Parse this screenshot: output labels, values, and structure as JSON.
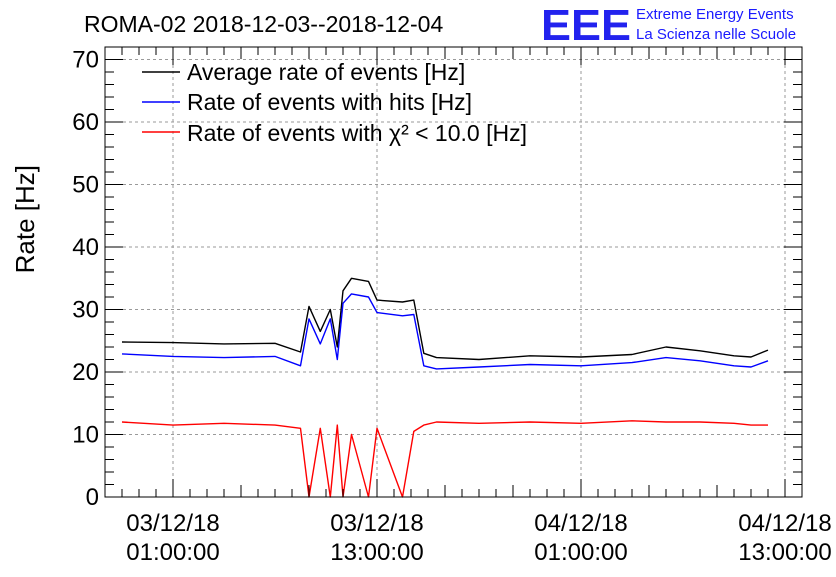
{
  "chart_data": {
    "type": "line",
    "title": "ROMA-02 2018-12-03--2018-12-04",
    "ylabel": "Rate [Hz]",
    "xlabel": "",
    "ylim": [
      0,
      72
    ],
    "yticks": [
      0,
      10,
      20,
      30,
      40,
      50,
      60,
      70
    ],
    "xlim": [
      "2018-12-02 21:00:00",
      "2018-12-04 14:00:00"
    ],
    "xticks": [
      {
        "date": "03/12/18",
        "time": "01:00:00",
        "t": "2018-12-03 01:00:00"
      },
      {
        "date": "03/12/18",
        "time": "13:00:00",
        "t": "2018-12-03 13:00:00"
      },
      {
        "date": "04/12/18",
        "time": "01:00:00",
        "t": "2018-12-04 01:00:00"
      },
      {
        "date": "04/12/18",
        "time": "13:00:00",
        "t": "2018-12-04 13:00:00"
      }
    ],
    "grid": true,
    "legend_position": "top-left",
    "series": [
      {
        "name": "Average rate of events [Hz]",
        "color": "#000000",
        "points": [
          [
            "2018-12-02 22:00",
            24.8
          ],
          [
            "2018-12-03 01:00",
            24.7
          ],
          [
            "2018-12-03 04:00",
            24.5
          ],
          [
            "2018-12-03 07:00",
            24.6
          ],
          [
            "2018-12-03 08:30",
            23.2
          ],
          [
            "2018-12-03 09:00",
            30.5
          ],
          [
            "2018-12-03 09:40",
            26.5
          ],
          [
            "2018-12-03 10:15",
            30.0
          ],
          [
            "2018-12-03 10:40",
            24.0
          ],
          [
            "2018-12-03 11:00",
            33.0
          ],
          [
            "2018-12-03 11:30",
            35.0
          ],
          [
            "2018-12-03 12:30",
            34.5
          ],
          [
            "2018-12-03 13:00",
            31.5
          ],
          [
            "2018-12-03 14:30",
            31.2
          ],
          [
            "2018-12-03 15:10",
            31.5
          ],
          [
            "2018-12-03 15:45",
            23.0
          ],
          [
            "2018-12-03 16:30",
            22.3
          ],
          [
            "2018-12-03 19:00",
            22.0
          ],
          [
            "2018-12-03 22:00",
            22.6
          ],
          [
            "2018-12-04 01:00",
            22.4
          ],
          [
            "2018-12-04 04:00",
            22.8
          ],
          [
            "2018-12-04 06:00",
            24.0
          ],
          [
            "2018-12-04 08:00",
            23.4
          ],
          [
            "2018-12-04 10:00",
            22.6
          ],
          [
            "2018-12-04 11:00",
            22.4
          ],
          [
            "2018-12-04 12:00",
            23.5
          ]
        ]
      },
      {
        "name": "Rate of events with hits [Hz]",
        "color": "#0000ff",
        "points": [
          [
            "2018-12-02 22:00",
            22.9
          ],
          [
            "2018-12-03 01:00",
            22.5
          ],
          [
            "2018-12-03 04:00",
            22.3
          ],
          [
            "2018-12-03 07:00",
            22.5
          ],
          [
            "2018-12-03 08:30",
            21.0
          ],
          [
            "2018-12-03 09:00",
            28.5
          ],
          [
            "2018-12-03 09:40",
            24.5
          ],
          [
            "2018-12-03 10:15",
            28.5
          ],
          [
            "2018-12-03 10:40",
            22.0
          ],
          [
            "2018-12-03 11:00",
            31.0
          ],
          [
            "2018-12-03 11:30",
            32.5
          ],
          [
            "2018-12-03 12:30",
            32.0
          ],
          [
            "2018-12-03 13:00",
            29.5
          ],
          [
            "2018-12-03 14:30",
            29.0
          ],
          [
            "2018-12-03 15:10",
            29.2
          ],
          [
            "2018-12-03 15:45",
            21.0
          ],
          [
            "2018-12-03 16:30",
            20.5
          ],
          [
            "2018-12-03 19:00",
            20.8
          ],
          [
            "2018-12-03 22:00",
            21.2
          ],
          [
            "2018-12-04 01:00",
            21.0
          ],
          [
            "2018-12-04 04:00",
            21.5
          ],
          [
            "2018-12-04 06:00",
            22.3
          ],
          [
            "2018-12-04 08:00",
            21.8
          ],
          [
            "2018-12-04 10:00",
            21.0
          ],
          [
            "2018-12-04 11:00",
            20.8
          ],
          [
            "2018-12-04 12:00",
            21.8
          ]
        ]
      },
      {
        "name": "Rate of events with χ² < 10.0 [Hz]",
        "color": "#ff0000",
        "points": [
          [
            "2018-12-02 22:00",
            12.0
          ],
          [
            "2018-12-03 01:00",
            11.5
          ],
          [
            "2018-12-03 04:00",
            11.8
          ],
          [
            "2018-12-03 07:00",
            11.5
          ],
          [
            "2018-12-03 08:30",
            11.0
          ],
          [
            "2018-12-03 09:00",
            0.0
          ],
          [
            "2018-12-03 09:40",
            11.0
          ],
          [
            "2018-12-03 10:15",
            0.0
          ],
          [
            "2018-12-03 10:40",
            11.5
          ],
          [
            "2018-12-03 11:00",
            0.0
          ],
          [
            "2018-12-03 11:30",
            10.0
          ],
          [
            "2018-12-03 12:30",
            0.0
          ],
          [
            "2018-12-03 13:00",
            11.0
          ],
          [
            "2018-12-03 14:30",
            0.0
          ],
          [
            "2018-12-03 15:10",
            10.5
          ],
          [
            "2018-12-03 15:45",
            11.5
          ],
          [
            "2018-12-03 16:30",
            12.0
          ],
          [
            "2018-12-03 19:00",
            11.8
          ],
          [
            "2018-12-03 22:00",
            12.0
          ],
          [
            "2018-12-04 01:00",
            11.8
          ],
          [
            "2018-12-04 04:00",
            12.2
          ],
          [
            "2018-12-04 06:00",
            12.0
          ],
          [
            "2018-12-04 08:00",
            12.0
          ],
          [
            "2018-12-04 10:00",
            11.8
          ],
          [
            "2018-12-04 11:00",
            11.5
          ],
          [
            "2018-12-04 12:00",
            11.5
          ]
        ]
      }
    ]
  },
  "logo": {
    "letters": "EEE",
    "line1": "Extreme Energy Events",
    "line2": "La Scienza nelle Scuole",
    "color": "#1a1aff"
  }
}
